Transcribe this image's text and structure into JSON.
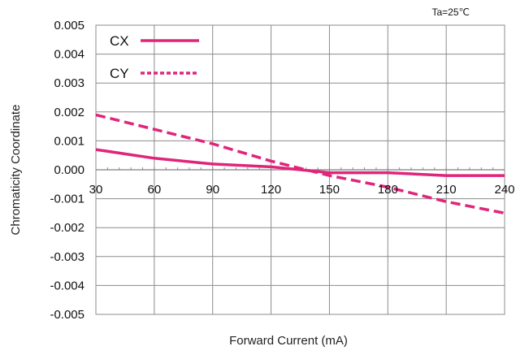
{
  "chart_data": {
    "type": "line",
    "annotation": "Ta=25℃",
    "xlabel": "Forward Current (mA)",
    "ylabel": "Chromaticity Coordinate",
    "xlim": [
      30,
      240
    ],
    "ylim": [
      -0.005,
      0.005
    ],
    "x_ticks": [
      "30",
      "60",
      "90",
      "120",
      "150",
      "180",
      "210",
      "240"
    ],
    "y_ticks": [
      "0.005",
      "0.004",
      "0.003",
      "0.002",
      "0.001",
      "0.000",
      "-0.001",
      "-0.002",
      "-0.003",
      "-0.004",
      "-0.005"
    ],
    "grid": true,
    "legend_position": "top-left",
    "series": [
      {
        "name": "CX",
        "style": "solid",
        "color": "#E0257A",
        "x": [
          30,
          60,
          90,
          120,
          150,
          180,
          210,
          240
        ],
        "y": [
          0.0007,
          0.0004,
          0.0002,
          0.0001,
          -0.0001,
          -0.0001,
          -0.0002,
          -0.0002
        ]
      },
      {
        "name": "CY",
        "style": "dashed",
        "color": "#E0257A",
        "x": [
          30,
          60,
          90,
          120,
          150,
          180,
          210,
          240
        ],
        "y": [
          0.0019,
          0.0014,
          0.0009,
          0.0003,
          -0.0002,
          -0.0006,
          -0.0011,
          -0.0015
        ]
      }
    ]
  }
}
